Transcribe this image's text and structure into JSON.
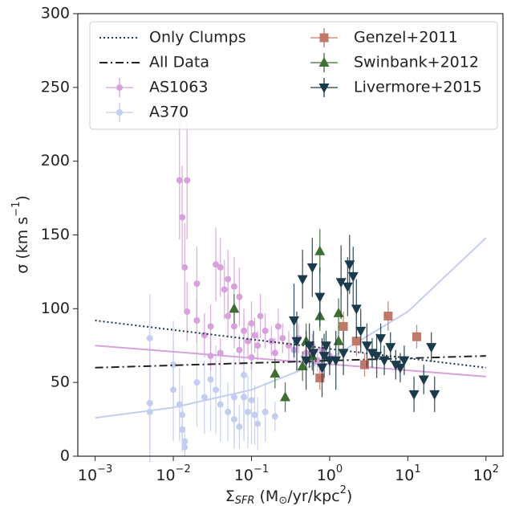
{
  "chart_data": {
    "type": "scatter",
    "xlabel": [
      "Σ",
      "SFR",
      " (M",
      "⊙",
      "/yr/kpc",
      "2",
      ")"
    ],
    "ylabel": [
      "σ (km s",
      "−1",
      ")"
    ],
    "xscale": "log",
    "xlim": [
      0.0006,
      165
    ],
    "ylim": [
      0,
      300
    ],
    "xticks": [
      {
        "value": 0.001,
        "label": "10",
        "power": "−3"
      },
      {
        "value": 0.01,
        "label": "10",
        "power": "−2"
      },
      {
        "value": 0.1,
        "label": "10",
        "power": "−1"
      },
      {
        "value": 1,
        "label": "10",
        "power": "0"
      },
      {
        "value": 10,
        "label": "10",
        "power": "1"
      },
      {
        "value": 100,
        "label": "10",
        "power": "2"
      }
    ],
    "yticks": [
      0,
      50,
      100,
      150,
      200,
      250,
      300
    ],
    "legend": "upper left",
    "series": [
      {
        "name": "A370",
        "kind": "scatter",
        "marker": "circle",
        "color": "#c3cdef",
        "x": [
          0.005,
          0.005,
          0.005,
          0.01,
          0.01,
          0.012,
          0.013,
          0.013,
          0.014,
          0.02,
          0.025,
          0.03,
          0.035,
          0.04,
          0.05,
          0.06,
          0.07,
          0.08,
          0.09,
          0.1,
          0.11,
          0.12,
          0.15,
          0.2,
          0.014,
          0.06,
          0.08
        ],
        "values": [
          80,
          36,
          30,
          62,
          45,
          35,
          28,
          18,
          10,
          50,
          40,
          52,
          45,
          35,
          30,
          25,
          20,
          40,
          30,
          38,
          28,
          22,
          30,
          27,
          6,
          40,
          55
        ],
        "yerr": [
          30,
          40,
          25,
          30,
          35,
          25,
          20,
          15,
          10,
          30,
          25,
          35,
          30,
          25,
          20,
          20,
          15,
          30,
          25,
          30,
          20,
          18,
          20,
          10,
          6,
          30,
          40
        ]
      },
      {
        "name": "AS1063",
        "kind": "scatter",
        "marker": "circle",
        "color": "#d7a2dc",
        "x": [
          0.012,
          0.015,
          0.013,
          0.014,
          0.02,
          0.015,
          0.02,
          0.025,
          0.03,
          0.035,
          0.04,
          0.045,
          0.05,
          0.06,
          0.07,
          0.05,
          0.06,
          0.08,
          0.09,
          0.1,
          0.11,
          0.12,
          0.13,
          0.15,
          0.18,
          0.2,
          0.22,
          0.25,
          0.3,
          0.35,
          0.4,
          0.5,
          0.6,
          0.7,
          0.8,
          1.0,
          0.04,
          0.03,
          0.07,
          0.1
        ],
        "values": [
          187,
          187,
          162,
          128,
          117,
          98,
          92,
          82,
          88,
          130,
          128,
          113,
          120,
          115,
          108,
          95,
          88,
          85,
          78,
          90,
          82,
          75,
          95,
          85,
          78,
          70,
          88,
          80,
          75,
          72,
          80,
          70,
          75,
          65,
          72,
          68,
          70,
          68,
          72,
          67
        ],
        "yerr": [
          40,
          40,
          35,
          30,
          25,
          20,
          15,
          15,
          15,
          25,
          20,
          20,
          20,
          20,
          20,
          15,
          15,
          15,
          12,
          15,
          12,
          10,
          15,
          12,
          10,
          10,
          12,
          10,
          10,
          8,
          10,
          8,
          8,
          8,
          8,
          8,
          10,
          10,
          10,
          8
        ]
      },
      {
        "kind": "line",
        "style": "solid",
        "color": "#c3cdef",
        "x": [
          0.001,
          0.01,
          0.1,
          1,
          10,
          100
        ],
        "values": [
          26,
          33,
          45,
          66,
          98,
          148
        ]
      },
      {
        "kind": "line",
        "style": "solid",
        "color": "#d7a2dc",
        "x": [
          0.001,
          100
        ],
        "values": [
          75,
          54
        ]
      },
      {
        "name": "Only Clumps",
        "kind": "line",
        "style": "dotted",
        "color": "#1b3a4b",
        "x": [
          0.001,
          100
        ],
        "values": [
          92,
          60
        ]
      },
      {
        "name": "All Data",
        "kind": "line",
        "style": "dashdot",
        "color": "#222222",
        "x": [
          0.001,
          100
        ],
        "values": [
          60,
          68
        ]
      },
      {
        "name": "Genzel+2011",
        "kind": "scatter",
        "marker": "square",
        "color": "#c07868",
        "x": [
          0.75,
          1.5,
          2.2,
          2.8,
          5.6,
          13
        ],
        "values": [
          53,
          88,
          78,
          62,
          95,
          81
        ],
        "yerr": [
          8,
          10,
          10,
          8,
          10,
          8
        ]
      },
      {
        "name": "Swinbank+2012",
        "kind": "scatter",
        "marker": "triangle-up",
        "color": "#3e6e32",
        "x": [
          0.06,
          0.2,
          0.27,
          0.45,
          0.5,
          0.75,
          0.75,
          1.3,
          1.3,
          0.6
        ],
        "values": [
          100,
          56,
          40,
          61,
          78,
          139,
          95,
          78,
          97,
          68
        ],
        "yerr": [
          10,
          10,
          10,
          10,
          12,
          15,
          10,
          10,
          10,
          10
        ]
      },
      {
        "name": "Livermore+2015",
        "kind": "scatter",
        "marker": "triangle-down",
        "color": "#1b3a4b",
        "x": [
          0.35,
          0.38,
          0.45,
          0.5,
          0.55,
          0.6,
          0.62,
          0.8,
          0.75,
          0.85,
          1.2,
          1.4,
          1.5,
          1.7,
          1.8,
          2.0,
          2.2,
          2.5,
          3,
          3.5,
          4,
          5,
          6,
          7,
          8,
          9,
          12,
          16,
          20,
          22,
          4.5,
          0.9,
          1.0
        ],
        "values": [
          92,
          78,
          120,
          65,
          75,
          128,
          70,
          60,
          108,
          68,
          65,
          118,
          70,
          115,
          130,
          122,
          100,
          85,
          75,
          70,
          68,
          65,
          74,
          62,
          60,
          65,
          42,
          52,
          74,
          42,
          80,
          75,
          65
        ],
        "yerr": [
          25,
          20,
          20,
          20,
          15,
          20,
          15,
          20,
          20,
          15,
          20,
          25,
          15,
          20,
          20,
          20,
          20,
          15,
          15,
          10,
          15,
          10,
          10,
          10,
          10,
          10,
          12,
          10,
          10,
          12,
          10,
          10,
          10
        ]
      }
    ]
  }
}
